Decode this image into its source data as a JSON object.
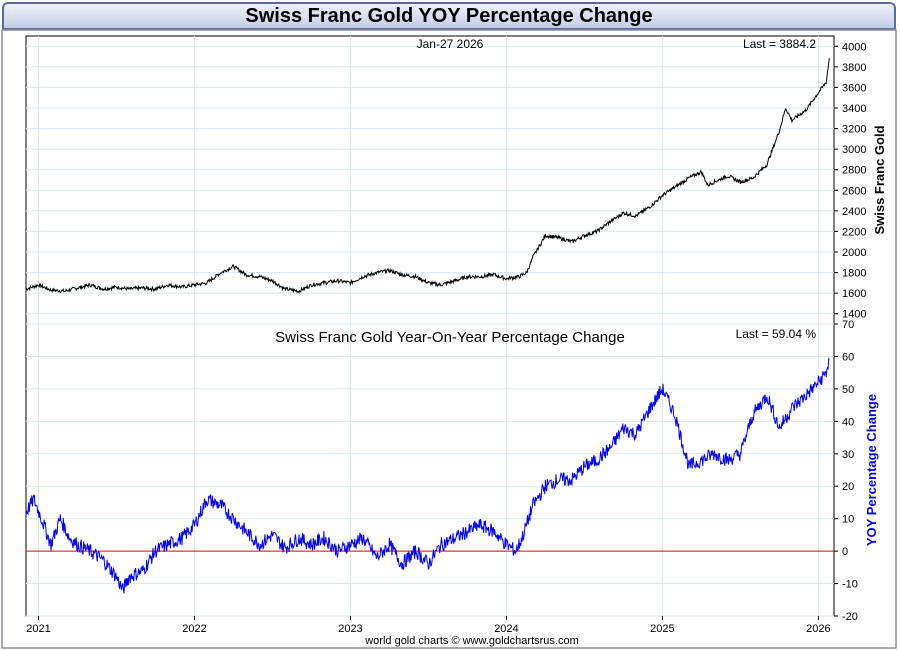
{
  "header": {
    "title": "Swiss Franc Gold YOY Percentage Change"
  },
  "footer": {
    "credit": "world gold charts © www.goldchartsrus.com"
  },
  "colors": {
    "price_line": "#000000",
    "yoy_line": "#0000ff",
    "zero_line": "#ff0000",
    "grid": "#d8e8f0",
    "frame": "#8a8aa8"
  },
  "chart_data": [
    {
      "type": "line",
      "title": "",
      "date_label": "Jan-27  2026",
      "last_label": "Last = 3884.2",
      "ylabel": "Swiss Franc Gold",
      "ylim": [
        1300,
        4100
      ],
      "yticks": [
        1400,
        1600,
        1800,
        2000,
        2200,
        2400,
        2600,
        2800,
        3000,
        3200,
        3400,
        3600,
        3800,
        4000
      ],
      "grid": true,
      "x": [
        2020.92,
        2021.0,
        2021.08,
        2021.17,
        2021.25,
        2021.33,
        2021.42,
        2021.5,
        2021.58,
        2021.67,
        2021.75,
        2021.83,
        2021.92,
        2022.0,
        2022.08,
        2022.17,
        2022.25,
        2022.33,
        2022.42,
        2022.5,
        2022.58,
        2022.67,
        2022.75,
        2022.83,
        2022.92,
        2023.0,
        2023.08,
        2023.17,
        2023.25,
        2023.33,
        2023.42,
        2023.5,
        2023.58,
        2023.67,
        2023.75,
        2023.83,
        2023.92,
        2024.0,
        2024.08,
        2024.13,
        2024.17,
        2024.25,
        2024.33,
        2024.42,
        2024.5,
        2024.58,
        2024.67,
        2024.75,
        2024.83,
        2024.92,
        2025.0,
        2025.08,
        2025.17,
        2025.25,
        2025.29,
        2025.33,
        2025.42,
        2025.5,
        2025.58,
        2025.67,
        2025.75,
        2025.79,
        2025.83,
        2025.92,
        2026.0,
        2026.05,
        2026.07
      ],
      "series": [
        {
          "name": "",
          "values": [
            1640,
            1680,
            1630,
            1620,
            1650,
            1680,
            1640,
            1660,
            1640,
            1650,
            1640,
            1680,
            1660,
            1680,
            1700,
            1800,
            1860,
            1780,
            1760,
            1720,
            1640,
            1620,
            1680,
            1700,
            1720,
            1700,
            1760,
            1800,
            1820,
            1780,
            1760,
            1700,
            1680,
            1720,
            1760,
            1760,
            1780,
            1740,
            1760,
            1800,
            1950,
            2160,
            2140,
            2100,
            2160,
            2200,
            2300,
            2380,
            2350,
            2440,
            2550,
            2630,
            2720,
            2780,
            2650,
            2680,
            2740,
            2680,
            2720,
            2850,
            3180,
            3400,
            3280,
            3380,
            3550,
            3650,
            3884
          ]
        }
      ]
    },
    {
      "type": "line",
      "title": "Swiss Franc Gold Year-On-Year Percentage Change",
      "last_label": "Last = 59.04 %",
      "ylabel": "YOY Percentage Change",
      "ylim": [
        -20,
        70
      ],
      "yticks": [
        -20,
        -10,
        0,
        10,
        20,
        30,
        40,
        50,
        60,
        70
      ],
      "grid": true,
      "xlim": [
        2020.92,
        2026.1
      ],
      "xticks": [
        "2021",
        "2022",
        "2023",
        "2024",
        "2025",
        "2026"
      ],
      "x": [
        2020.92,
        2020.97,
        2021.02,
        2021.08,
        2021.14,
        2021.2,
        2021.25,
        2021.33,
        2021.42,
        2021.5,
        2021.54,
        2021.58,
        2021.67,
        2021.75,
        2021.83,
        2021.92,
        2022.0,
        2022.08,
        2022.17,
        2022.25,
        2022.33,
        2022.42,
        2022.5,
        2022.58,
        2022.67,
        2022.75,
        2022.83,
        2022.92,
        2023.0,
        2023.08,
        2023.17,
        2023.25,
        2023.33,
        2023.42,
        2023.5,
        2023.58,
        2023.67,
        2023.75,
        2023.83,
        2023.92,
        2024.0,
        2024.06,
        2024.1,
        2024.17,
        2024.25,
        2024.33,
        2024.42,
        2024.5,
        2024.58,
        2024.67,
        2024.75,
        2024.83,
        2024.92,
        2025.0,
        2025.08,
        2025.17,
        2025.25,
        2025.33,
        2025.42,
        2025.5,
        2025.58,
        2025.67,
        2025.75,
        2025.83,
        2025.92,
        2026.0,
        2026.05,
        2026.07
      ],
      "series": [
        {
          "name": "",
          "values": [
            12,
            16,
            10,
            2,
            10,
            4,
            2,
            0,
            -3,
            -8,
            -12,
            -8,
            -6,
            0,
            2,
            4,
            8,
            16,
            14,
            10,
            6,
            2,
            5,
            1,
            4,
            2,
            4,
            0,
            2,
            4,
            -2,
            2,
            -4,
            0,
            -4,
            2,
            4,
            6,
            8,
            6,
            2,
            0,
            4,
            14,
            20,
            22,
            22,
            26,
            28,
            32,
            38,
            36,
            44,
            50,
            42,
            26,
            28,
            30,
            28,
            30,
            42,
            48,
            38,
            44,
            48,
            52,
            55,
            59
          ]
        }
      ]
    }
  ]
}
